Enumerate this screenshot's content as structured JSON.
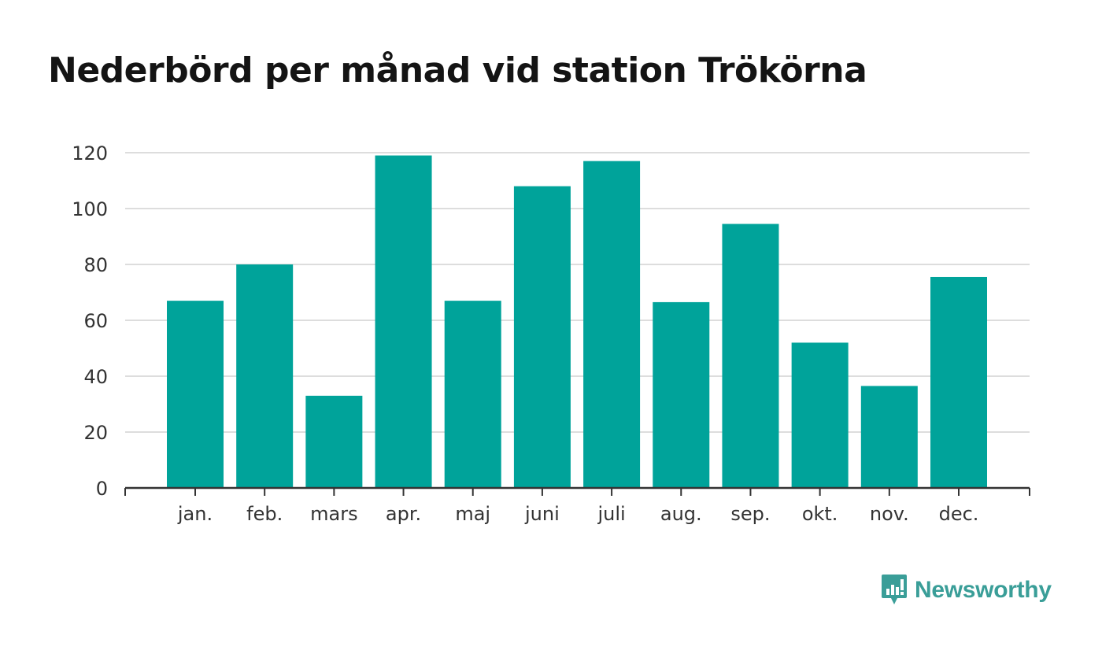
{
  "title": "Nederbörd per månad vid station Trökörna",
  "brand": {
    "name": "Newsworthy",
    "color": "#3a9e98"
  },
  "colors": {
    "bar": "#00a39a",
    "grid": "#dddddd",
    "axis": "#333333"
  },
  "chart_data": {
    "type": "bar",
    "categories": [
      "jan.",
      "feb.",
      "mars",
      "apr.",
      "maj",
      "juni",
      "juli",
      "aug.",
      "sep.",
      "okt.",
      "nov.",
      "dec."
    ],
    "values": [
      67,
      80,
      33,
      119,
      67,
      108,
      117,
      66.5,
      94.5,
      52,
      36.5,
      75.5
    ],
    "ylim": [
      0,
      120
    ],
    "yticks": [
      0,
      20,
      40,
      60,
      80,
      100,
      120
    ],
    "grid": true,
    "legend": "none",
    "title": "Nederbörd per månad vid station Trökörna",
    "xlabel": "",
    "ylabel": ""
  }
}
